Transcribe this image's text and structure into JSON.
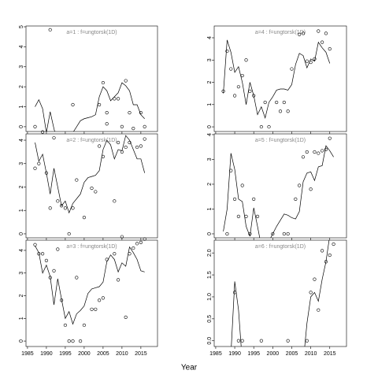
{
  "chart_data": [
    {
      "type": "scatter",
      "title": "a=1 : f=ungtorsk(1D)",
      "xlim": [
        1984.6,
        2019.4
      ],
      "xticks": [
        1985,
        1990,
        1995,
        2000,
        2005,
        2010,
        2015
      ],
      "ylim": [
        -0.24,
        5.04
      ],
      "yticks": [
        0,
        1,
        2,
        3,
        4,
        5
      ],
      "x": [
        1987,
        1991,
        1997,
        2004,
        2005,
        2006,
        2008,
        2009,
        2010,
        2011,
        2012,
        2015,
        2016
      ],
      "values": [
        0,
        4.85,
        1.1,
        1.1,
        2.2,
        0.7,
        1.4,
        1.4,
        0,
        2.3,
        0.7,
        0.7,
        0
      ],
      "fit_x": [
        1987,
        1988,
        1989,
        1990,
        1991,
        1992,
        1993,
        1994,
        1995,
        1996,
        1997,
        1998,
        1999,
        2000,
        2001,
        2002,
        2003,
        2004,
        2005,
        2006,
        2007,
        2008,
        2009,
        2010,
        2011,
        2012,
        2013,
        2014,
        2015,
        2016
      ],
      "fit_values": [
        1.0,
        1.35,
        0.9,
        -0.3,
        0.75,
        -0.1,
        -0.8,
        -0.6,
        -0.7,
        -0.5,
        -0.3,
        0.0,
        0.3,
        0.4,
        0.45,
        0.5,
        0.6,
        1.5,
        2.0,
        1.8,
        1.3,
        1.5,
        1.7,
        2.2,
        2.05,
        1.8,
        1.1,
        1.1,
        0.6,
        0.4
      ]
    },
    {
      "type": "scatter",
      "title": "a=2 : f=ungtorsk(1D)",
      "xlim": [
        1984.6,
        2019.4
      ],
      "xticks": [
        1985,
        1990,
        1995,
        2000,
        2005,
        2010,
        2015
      ],
      "ylim": [
        -0.17,
        4.27
      ],
      "yticks": [
        0,
        1,
        2,
        3,
        4
      ],
      "x": [
        1987,
        1988,
        1989,
        1990,
        1991,
        1992,
        1993,
        1994,
        1995,
        1996,
        1997,
        1998,
        2000,
        2002,
        2003,
        2004,
        2005,
        2006,
        2008,
        2009,
        2010,
        2011,
        2012,
        2013,
        2014,
        2015,
        2016
      ],
      "values": [
        2.8,
        3.0,
        4.35,
        2.6,
        1.1,
        4.1,
        1.4,
        1.2,
        1.1,
        0,
        1.1,
        2.3,
        0.7,
        1.95,
        1.8,
        3.75,
        3.3,
        4.7,
        1.4,
        3.9,
        3.5,
        3.7,
        3.9,
        4.5,
        3.7,
        3.75,
        4.05
      ],
      "fit_x": [
        1987,
        1988,
        1989,
        1990,
        1991,
        1992,
        1993,
        1994,
        1995,
        1996,
        1997,
        1998,
        1999,
        2000,
        2001,
        2002,
        2003,
        2004,
        2005,
        2006,
        2007,
        2008,
        2009,
        2010,
        2011,
        2012,
        2013,
        2014,
        2015,
        2016
      ],
      "fit_values": [
        3.9,
        3.1,
        3.4,
        2.6,
        1.7,
        2.8,
        2.0,
        1.2,
        1.4,
        0.9,
        1.3,
        1.5,
        1.7,
        2.2,
        2.4,
        2.45,
        2.5,
        2.7,
        3.6,
        4.0,
        3.8,
        3.2,
        3.6,
        3.55,
        4.2,
        4.0,
        3.6,
        3.2,
        3.2,
        2.6
      ]
    },
    {
      "type": "scatter",
      "title": "a=3 : f=ungtorsk(1D)",
      "xlim": [
        1984.6,
        2019.4
      ],
      "xticks": [
        1985,
        1990,
        1995,
        2000,
        2005,
        2010,
        2015
      ],
      "ylim": [
        -0.24,
        4.45
      ],
      "yticks": [
        0,
        1,
        2,
        3,
        4
      ],
      "x": [
        1987,
        1988,
        1989,
        1990,
        1991,
        1992,
        1993,
        1994,
        1995,
        1996,
        1997,
        1998,
        1999,
        2000,
        2002,
        2003,
        2004,
        2005,
        2006,
        2008,
        2009,
        2010,
        2011,
        2012,
        2013,
        2014,
        2015,
        2016
      ],
      "values": [
        4.25,
        3.85,
        3.85,
        3.55,
        2.8,
        3.1,
        4.05,
        1.8,
        0.7,
        0,
        0,
        2.8,
        0,
        0.7,
        1.4,
        1.4,
        1.8,
        1.9,
        3.6,
        3.85,
        2.7,
        4.6,
        1.05,
        3.85,
        4.1,
        4.3,
        4.35,
        4.5
      ],
      "fit_x": [
        1987,
        1988,
        1989,
        1990,
        1991,
        1992,
        1993,
        1994,
        1995,
        1996,
        1997,
        1998,
        1999,
        2000,
        2001,
        2002,
        2003,
        2004,
        2005,
        2006,
        2007,
        2008,
        2009,
        2010,
        2011,
        2012,
        2013,
        2014,
        2015,
        2016
      ],
      "fit_values": [
        4.2,
        3.9,
        3.0,
        3.35,
        2.85,
        1.6,
        2.75,
        1.85,
        1.0,
        1.3,
        0.75,
        1.2,
        1.35,
        1.55,
        2.1,
        2.3,
        2.35,
        2.4,
        2.6,
        3.5,
        3.8,
        3.6,
        3.05,
        3.45,
        3.3,
        4.15,
        3.9,
        3.6,
        3.1,
        3.05
      ]
    },
    {
      "type": "scatter",
      "title": "a=4 : f=ungtorsk(1D)",
      "xlim": [
        1984.6,
        2019.4
      ],
      "xticks": [
        1985,
        1990,
        1995,
        2000,
        2005,
        2010,
        2015
      ],
      "ylim": [
        -0.21,
        4.53
      ],
      "yticks": [
        0,
        1,
        2,
        3,
        4
      ],
      "x": [
        1987,
        1988,
        1989,
        1990,
        1991,
        1992,
        1993,
        1994,
        1995,
        1997,
        1998,
        1999,
        2001,
        2002,
        2003,
        2004,
        2005,
        2007,
        2008,
        2009,
        2010,
        2011,
        2012,
        2013,
        2014,
        2015
      ],
      "values": [
        1.6,
        3.4,
        2.6,
        1.4,
        1.8,
        2.3,
        3.0,
        1.6,
        1.4,
        0,
        1.1,
        0,
        1.1,
        0.7,
        1.1,
        0.7,
        2.6,
        4.15,
        4.2,
        2.95,
        2.9,
        3.05,
        4.3,
        3.8,
        4.2,
        3.5
      ],
      "fit_x": [
        1987,
        1988,
        1989,
        1990,
        1991,
        1992,
        1993,
        1994,
        1995,
        1996,
        1997,
        1998,
        1999,
        2000,
        2001,
        2002,
        2003,
        2004,
        2005,
        2006,
        2007,
        2008,
        2009,
        2010,
        2011,
        2012,
        2013,
        2014,
        2015
      ],
      "fit_values": [
        1.5,
        3.9,
        3.35,
        2.45,
        2.7,
        2.0,
        1.0,
        2.0,
        1.4,
        0.55,
        0.9,
        0.4,
        1.1,
        1.35,
        1.65,
        1.7,
        1.7,
        1.65,
        1.9,
        2.8,
        3.3,
        3.2,
        2.65,
        3.05,
        2.95,
        3.8,
        3.55,
        3.35,
        2.85
      ]
    },
    {
      "type": "scatter",
      "title": "a=5 : f=ungtorsk(1D)",
      "xlim": [
        1984.6,
        2019.4
      ],
      "xticks": [
        1985,
        1990,
        1995,
        2000,
        2005,
        2010,
        2015
      ],
      "ylim": [
        -0.16,
        4.03
      ],
      "yticks": [
        0,
        1,
        2,
        3,
        4
      ],
      "x": [
        1988,
        1989,
        1990,
        1991,
        1992,
        1993,
        1994,
        1995,
        1996,
        2000,
        2003,
        2004,
        2006,
        2007,
        2008,
        2009,
        2010,
        2011,
        2012,
        2013,
        2014,
        2015
      ],
      "values": [
        0,
        2.55,
        1.4,
        0.7,
        1.95,
        0.7,
        0,
        1.4,
        0.7,
        0,
        0,
        0,
        1.4,
        1.95,
        3.1,
        3.3,
        1.8,
        3.3,
        3.25,
        3.35,
        3.4,
        3.85
      ],
      "fit_x": [
        1987,
        1988,
        1989,
        1990,
        1991,
        1992,
        1993,
        1994,
        1995,
        1996,
        1997,
        1998,
        1999,
        2000,
        2001,
        2002,
        2003,
        2004,
        2005,
        2006,
        2007,
        2008,
        2009,
        2010,
        2011,
        2012,
        2013,
        2014,
        2015,
        2016
      ],
      "fit_values": [
        0.1,
        1.0,
        3.25,
        2.6,
        1.4,
        1.3,
        0.3,
        -0.1,
        1.05,
        0.3,
        -0.5,
        -0.5,
        -0.3,
        0.0,
        0.3,
        0.55,
        0.8,
        0.75,
        0.65,
        0.6,
        0.9,
        2.1,
        2.45,
        2.5,
        2.15,
        2.7,
        2.75,
        3.55,
        3.35,
        3.1
      ]
    },
    {
      "type": "scatter",
      "title": "a=6 : f=ungtorsk(1D)",
      "xlim": [
        1984.6,
        2019.4
      ],
      "xticks": [
        1985,
        1990,
        1995,
        2000,
        2005,
        2010,
        2015
      ],
      "ylim": [
        -0.13,
        2.29
      ],
      "yticks": [
        {
          "value": 0,
          "label": "0.0"
        },
        {
          "value": 0.5,
          "label": "0.5"
        },
        {
          "value": 1,
          "label": "1.0"
        },
        {
          "value": 1.5,
          "label": "1.5"
        },
        {
          "value": 2,
          "label": "2.0"
        }
      ],
      "x": [
        1990,
        1991,
        1992,
        1997,
        2004,
        2009,
        2010,
        2011,
        2012,
        2013,
        2014,
        2015,
        2016
      ],
      "values": [
        1.1,
        0,
        0,
        0,
        0,
        0,
        1.1,
        1.4,
        0.7,
        2.05,
        1.8,
        1.95,
        2.2
      ],
      "fit_x": [
        1989,
        1990,
        1991,
        1992,
        2008,
        2009,
        2010,
        2011,
        2012,
        2013,
        2014,
        2015
      ],
      "fit_values": [
        -0.3,
        1.35,
        0.7,
        -0.5,
        -0.5,
        0.4,
        1.0,
        1.1,
        0.9,
        1.4,
        1.8,
        2.4
      ]
    }
  ],
  "xlabel": "Year"
}
